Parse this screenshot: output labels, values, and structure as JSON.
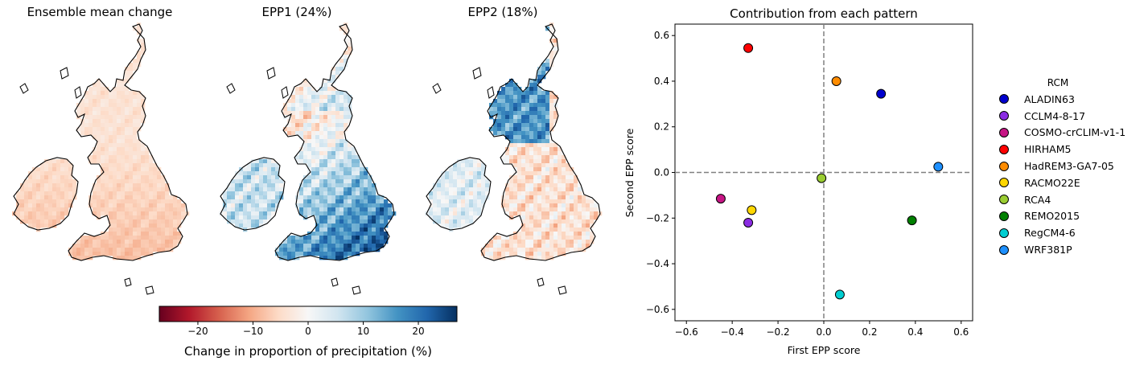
{
  "maps": [
    {
      "title": "Ensemble mean change"
    },
    {
      "title": "EPP1 (24%)"
    },
    {
      "title": "EPP2 (18%)"
    }
  ],
  "colorbar": {
    "label": "Change in proportion of precipitation (%)",
    "range": [
      -27,
      27
    ],
    "ticks": [
      -20,
      -10,
      0,
      10,
      20
    ],
    "tick_labels": [
      "−20",
      "−10",
      "0",
      "10",
      "20"
    ],
    "colormap": "RdBu"
  },
  "chart_data": {
    "type": "scatter",
    "title": "Contribution from each pattern",
    "xlabel": "First EPP score",
    "ylabel": "Second EPP score",
    "xlim": [
      -0.65,
      0.65
    ],
    "ylim": [
      -0.65,
      0.65
    ],
    "xticks": [
      -0.6,
      -0.4,
      -0.2,
      0.0,
      0.2,
      0.4,
      0.6
    ],
    "xtick_labels": [
      "−0.6",
      "−0.4",
      "−0.2",
      "0.0",
      "0.2",
      "0.4",
      "0.6"
    ],
    "yticks": [
      -0.6,
      -0.4,
      -0.2,
      0.0,
      0.2,
      0.4,
      0.6
    ],
    "ytick_labels": [
      "−0.6",
      "−0.4",
      "−0.2",
      "0.0",
      "0.2",
      "0.4",
      "0.6"
    ],
    "grid": false,
    "reference_lines": {
      "x": 0,
      "y": 0,
      "style": "dashed",
      "color": "#808080"
    },
    "legend_title": "RCM",
    "legend_position": "right",
    "points": [
      {
        "name": "ALADIN63",
        "x": 0.25,
        "y": 0.345,
        "color": "#0000cd"
      },
      {
        "name": "CCLM4-8-17",
        "x": -0.33,
        "y": -0.22,
        "color": "#8a2be2"
      },
      {
        "name": "COSMO-crCLIM-v1-1",
        "x": -0.45,
        "y": -0.115,
        "color": "#c71585"
      },
      {
        "name": "HIRHAM5",
        "x": -0.33,
        "y": 0.545,
        "color": "#ff0000"
      },
      {
        "name": "HadREM3-GA7-05",
        "x": 0.055,
        "y": 0.4,
        "color": "#ff8c00"
      },
      {
        "name": "RACMO22E",
        "x": -0.315,
        "y": -0.165,
        "color": "#ffd700"
      },
      {
        "name": "RCA4",
        "x": -0.01,
        "y": -0.025,
        "color": "#9acd32"
      },
      {
        "name": "REMO2015",
        "x": 0.385,
        "y": -0.21,
        "color": "#008000"
      },
      {
        "name": "RegCM4-6",
        "x": 0.07,
        "y": -0.535,
        "color": "#00ced1"
      },
      {
        "name": "WRF381P",
        "x": 0.5,
        "y": 0.025,
        "color": "#1e90ff"
      }
    ]
  }
}
